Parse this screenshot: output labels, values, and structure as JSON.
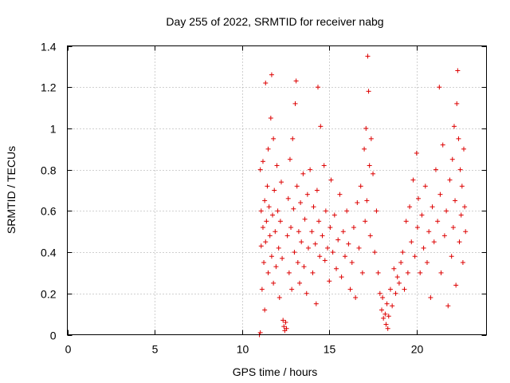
{
  "chart_data": {
    "type": "scatter",
    "title": "Day 255 of 2022, SRMTID for receiver nabg",
    "xlabel": "GPS time / hours",
    "ylabel": "SRMTID / TECUs",
    "xlim": [
      0,
      24
    ],
    "ylim": [
      0,
      1.4
    ],
    "xticks": [
      0,
      5,
      10,
      15,
      20
    ],
    "xtick_labels": [
      "0",
      "5",
      "10",
      "15",
      "20"
    ],
    "yticks": [
      0,
      0.2,
      0.4,
      0.6,
      0.8,
      1.0,
      1.2,
      1.4
    ],
    "ytick_labels": [
      "0",
      "0.2",
      "0.4",
      "0.6",
      "0.8",
      "1",
      "1.2",
      "1.4"
    ],
    "grid": true,
    "marker": "+",
    "series_color": "#dd0000",
    "series": [
      {
        "name": "nabg",
        "points": [
          [
            11.0,
            0.0
          ],
          [
            11.05,
            0.01
          ],
          [
            11.05,
            0.8
          ],
          [
            11.1,
            0.43
          ],
          [
            11.1,
            0.6
          ],
          [
            11.15,
            0.22
          ],
          [
            11.2,
            0.52
          ],
          [
            11.2,
            0.84
          ],
          [
            11.25,
            0.35
          ],
          [
            11.3,
            0.65
          ],
          [
            11.3,
            0.12
          ],
          [
            11.35,
            0.45
          ],
          [
            11.35,
            1.22
          ],
          [
            11.4,
            0.55
          ],
          [
            11.45,
            0.72
          ],
          [
            11.5,
            0.3
          ],
          [
            11.5,
            0.9
          ],
          [
            11.55,
            0.62
          ],
          [
            11.6,
            0.48
          ],
          [
            11.65,
            1.05
          ],
          [
            11.7,
            1.26
          ],
          [
            11.7,
            0.38
          ],
          [
            11.75,
            0.58
          ],
          [
            11.8,
            0.95
          ],
          [
            11.8,
            0.25
          ],
          [
            11.85,
            0.7
          ],
          [
            11.9,
            0.5
          ],
          [
            11.95,
            0.33
          ],
          [
            12.0,
            0.82
          ],
          [
            12.05,
            0.6
          ],
          [
            12.1,
            0.42
          ],
          [
            12.15,
            0.18
          ],
          [
            12.2,
            0.55
          ],
          [
            12.25,
            0.74
          ],
          [
            12.3,
            0.37
          ],
          [
            12.35,
            0.07
          ],
          [
            12.4,
            0.04
          ],
          [
            12.45,
            0.02
          ],
          [
            12.5,
            0.06
          ],
          [
            12.55,
            0.03
          ],
          [
            12.6,
            0.48
          ],
          [
            12.65,
            0.66
          ],
          [
            12.7,
            0.3
          ],
          [
            12.75,
            0.85
          ],
          [
            12.8,
            0.52
          ],
          [
            12.85,
            0.22
          ],
          [
            12.9,
            0.95
          ],
          [
            12.95,
            0.61
          ],
          [
            13.0,
            0.4
          ],
          [
            13.05,
            1.12
          ],
          [
            13.1,
            1.23
          ],
          [
            13.15,
            0.72
          ],
          [
            13.2,
            0.35
          ],
          [
            13.25,
            0.5
          ],
          [
            13.3,
            0.25
          ],
          [
            13.35,
            0.64
          ],
          [
            13.4,
            0.45
          ],
          [
            13.5,
            0.78
          ],
          [
            13.55,
            0.33
          ],
          [
            13.6,
            0.56
          ],
          [
            13.7,
            0.2
          ],
          [
            13.75,
            0.68
          ],
          [
            13.8,
            0.42
          ],
          [
            13.9,
            0.8
          ],
          [
            14.0,
            0.5
          ],
          [
            14.05,
            0.3
          ],
          [
            14.1,
            0.62
          ],
          [
            14.2,
            0.44
          ],
          [
            14.25,
            0.15
          ],
          [
            14.3,
            0.7
          ],
          [
            14.35,
            1.2
          ],
          [
            14.4,
            0.55
          ],
          [
            14.45,
            0.38
          ],
          [
            14.5,
            1.01
          ],
          [
            14.6,
            0.48
          ],
          [
            14.7,
            0.82
          ],
          [
            14.75,
            0.36
          ],
          [
            14.8,
            0.6
          ],
          [
            14.9,
            0.42
          ],
          [
            15.0,
            0.26
          ],
          [
            15.05,
            0.52
          ],
          [
            15.1,
            0.75
          ],
          [
            15.2,
            0.4
          ],
          [
            15.3,
            0.58
          ],
          [
            15.4,
            0.32
          ],
          [
            15.5,
            0.46
          ],
          [
            15.6,
            0.68
          ],
          [
            15.7,
            0.28
          ],
          [
            15.8,
            0.5
          ],
          [
            15.9,
            0.38
          ],
          [
            16.0,
            0.6
          ],
          [
            16.1,
            0.44
          ],
          [
            16.2,
            0.22
          ],
          [
            16.3,
            0.35
          ],
          [
            16.4,
            0.52
          ],
          [
            16.5,
            0.18
          ],
          [
            16.6,
            0.64
          ],
          [
            16.7,
            0.42
          ],
          [
            16.8,
            0.72
          ],
          [
            16.9,
            0.3
          ],
          [
            17.0,
            0.9
          ],
          [
            17.05,
            0.55
          ],
          [
            17.1,
            1.0
          ],
          [
            17.15,
            0.65
          ],
          [
            17.2,
            1.35
          ],
          [
            17.25,
            1.18
          ],
          [
            17.3,
            0.82
          ],
          [
            17.35,
            0.48
          ],
          [
            17.4,
            0.95
          ],
          [
            17.5,
            0.78
          ],
          [
            17.6,
            0.4
          ],
          [
            17.7,
            0.6
          ],
          [
            17.8,
            0.3
          ],
          [
            17.9,
            0.2
          ],
          [
            18.0,
            0.12
          ],
          [
            18.05,
            0.18
          ],
          [
            18.1,
            0.08
          ],
          [
            18.2,
            0.1
          ],
          [
            18.25,
            0.05
          ],
          [
            18.3,
            0.15
          ],
          [
            18.35,
            0.03
          ],
          [
            18.4,
            0.09
          ],
          [
            18.5,
            0.22
          ],
          [
            18.6,
            0.14
          ],
          [
            18.7,
            0.32
          ],
          [
            18.8,
            0.2
          ],
          [
            18.9,
            0.28
          ],
          [
            19.0,
            0.25
          ],
          [
            19.1,
            0.35
          ],
          [
            19.2,
            0.4
          ],
          [
            19.3,
            0.22
          ],
          [
            19.4,
            0.55
          ],
          [
            19.5,
            0.3
          ],
          [
            19.6,
            0.62
          ],
          [
            19.7,
            0.45
          ],
          [
            19.8,
            0.75
          ],
          [
            19.9,
            0.38
          ],
          [
            20.0,
            0.88
          ],
          [
            20.05,
            0.52
          ],
          [
            20.1,
            0.66
          ],
          [
            20.2,
            0.3
          ],
          [
            20.3,
            0.58
          ],
          [
            20.4,
            0.42
          ],
          [
            20.5,
            0.72
          ],
          [
            20.6,
            0.35
          ],
          [
            20.7,
            0.5
          ],
          [
            20.8,
            0.18
          ],
          [
            20.9,
            0.62
          ],
          [
            21.0,
            0.45
          ],
          [
            21.1,
            0.8
          ],
          [
            21.2,
            0.55
          ],
          [
            21.3,
            1.2
          ],
          [
            21.35,
            0.68
          ],
          [
            21.4,
            0.3
          ],
          [
            21.5,
            0.92
          ],
          [
            21.6,
            0.48
          ],
          [
            21.7,
            0.6
          ],
          [
            21.8,
            0.14
          ],
          [
            21.9,
            0.75
          ],
          [
            22.0,
            0.38
          ],
          [
            22.05,
            0.85
          ],
          [
            22.1,
            0.52
          ],
          [
            22.15,
            1.01
          ],
          [
            22.2,
            0.65
          ],
          [
            22.25,
            0.24
          ],
          [
            22.3,
            1.12
          ],
          [
            22.35,
            1.28
          ],
          [
            22.4,
            0.95
          ],
          [
            22.45,
            0.45
          ],
          [
            22.5,
            0.8
          ],
          [
            22.55,
            0.58
          ],
          [
            22.6,
            0.72
          ],
          [
            22.65,
            0.35
          ],
          [
            22.7,
            0.9
          ],
          [
            22.75,
            0.62
          ],
          [
            22.8,
            0.5
          ]
        ]
      }
    ]
  }
}
